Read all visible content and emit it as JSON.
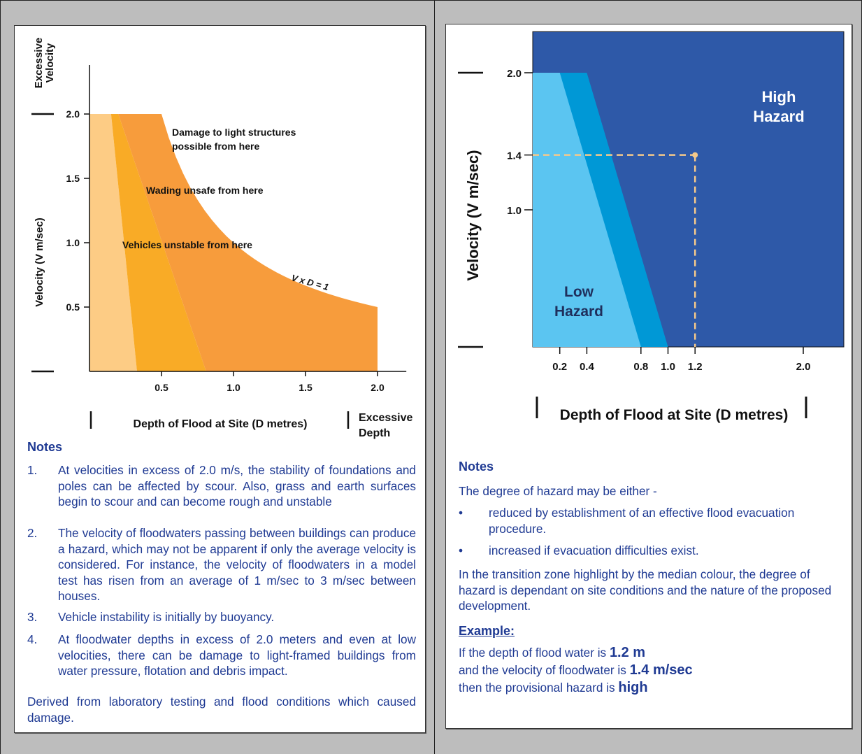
{
  "left": {
    "labels": {
      "excessive_velocity": [
        "Excessive",
        "Velocity"
      ],
      "y_axis": "Velocity (V m/sec)",
      "x_axis": "Depth of Flood at Site (D metres)",
      "excessive_depth": [
        "Excessive",
        "Depth"
      ]
    },
    "annotations": {
      "structures": [
        "Damage to light structures",
        "possible from here"
      ],
      "wading": "Wading unsafe from here",
      "vehicles": "Vehicles unstable from here",
      "curve": "V x D = 1"
    },
    "notes": {
      "title": "Notes",
      "items": [
        {
          "num": "1.",
          "text": "At velocities in excess of 2.0 m/s, the stability of foundations and poles can be affected by scour. Also, grass and earth surfaces begin to scour and can become rough and unstable"
        },
        {
          "num": "2.",
          "text": "The velocity of floodwaters passing between buildings can produce a hazard, which may not be apparent if only the average velocity is considered. For instance, the velocity of floodwaters in a model test has risen from an average of 1 m/sec to 3 m/sec between houses."
        },
        {
          "num": "3.",
          "text": "Vehicle instability is initially by buoyancy."
        },
        {
          "num": "4.",
          "text": "At floodwater depths in excess of 2.0 meters and even at low velocities, there can be damage to light-framed buildings from water pressure, flotation and debris impact."
        }
      ],
      "footer": "Derived from laboratory testing and flood conditions which caused damage."
    },
    "colors": {
      "light": "#fdcc85",
      "mid": "#f9ab26",
      "main": "#f79c3c"
    }
  },
  "right": {
    "labels": {
      "y_axis": "Velocity (V m/sec)",
      "x_axis": "Depth of Flood at Site (D metres)",
      "high": [
        "High",
        "Hazard"
      ],
      "low": [
        "Low",
        "Hazard"
      ]
    },
    "notes": {
      "title": "Notes",
      "intro": "The degree of hazard may be either -",
      "bullets": [
        "reduced by establishment of an effective flood evacuation procedure.",
        "increased if evacuation difficulties exist."
      ],
      "transition": "In the transition zone highlight by the median colour, the degree of hazard is dependant on site conditions and the nature of the proposed development.",
      "example_title": "Example:",
      "example_lines": [
        {
          "pre": "If the depth of flood water is ",
          "bold": "1.2 m"
        },
        {
          "pre": "and the velocity of floodwater is ",
          "bold": "1.4 m/sec"
        },
        {
          "pre": "then the provisional hazard is ",
          "bold": "high"
        }
      ]
    },
    "colors": {
      "high": "#2e59a8",
      "transition": "#0098d6",
      "low": "#5bc5f1",
      "marker": "#f5c98a"
    }
  },
  "chart_data": [
    {
      "type": "area",
      "x_ticks": [
        "0.5",
        "1.0",
        "1.5",
        "2.0"
      ],
      "y_ticks": [
        "0.5",
        "1.0",
        "1.5",
        "2.0"
      ],
      "xlim": [
        0,
        2.3
      ],
      "ylim": [
        0,
        2.3
      ],
      "regions": [
        {
          "polygon": [
            [
              0,
              0
            ],
            [
              0,
              2.0
            ],
            [
              0.15,
              2.0
            ],
            [
              0.33,
              0
            ]
          ]
        },
        {
          "polygon": [
            [
              0.15,
              2.0
            ],
            [
              0.2,
              2.0
            ],
            [
              0.81,
              0
            ],
            [
              0.33,
              0
            ]
          ]
        },
        {
          "polygon": [
            [
              0.2,
              2.0
            ],
            [
              0.5,
              2.0
            ],
            [
              2.0,
              0.5
            ],
            [
              2.0,
              0
            ],
            [
              0.81,
              0
            ]
          ]
        }
      ],
      "curve": {
        "equation": "V x D = 1",
        "x_from": 0.5,
        "x_to": 2.0
      }
    },
    {
      "type": "area",
      "x_ticks": [
        "0.2",
        "0.4",
        "0.8",
        "1.0",
        "1.2",
        "2.0"
      ],
      "y_ticks": [
        "1.0",
        "1.4",
        "2.0"
      ],
      "xlim": [
        0,
        2.3
      ],
      "ylim": [
        0,
        2.3
      ],
      "regions": [
        {
          "polygon": [
            [
              0,
              0
            ],
            [
              2.3,
              0
            ],
            [
              2.3,
              2.3
            ],
            [
              0,
              2.3
            ]
          ]
        },
        {
          "polygon": [
            [
              0,
              0
            ],
            [
              0,
              2.0
            ],
            [
              0.4,
              2.0
            ],
            [
              1.0,
              0
            ]
          ]
        },
        {
          "polygon": [
            [
              0,
              0
            ],
            [
              0,
              2.0
            ],
            [
              0.2,
              2.0
            ],
            [
              0.8,
              0
            ]
          ]
        }
      ],
      "example_point": {
        "x": 1.2,
        "y": 1.4
      }
    }
  ]
}
